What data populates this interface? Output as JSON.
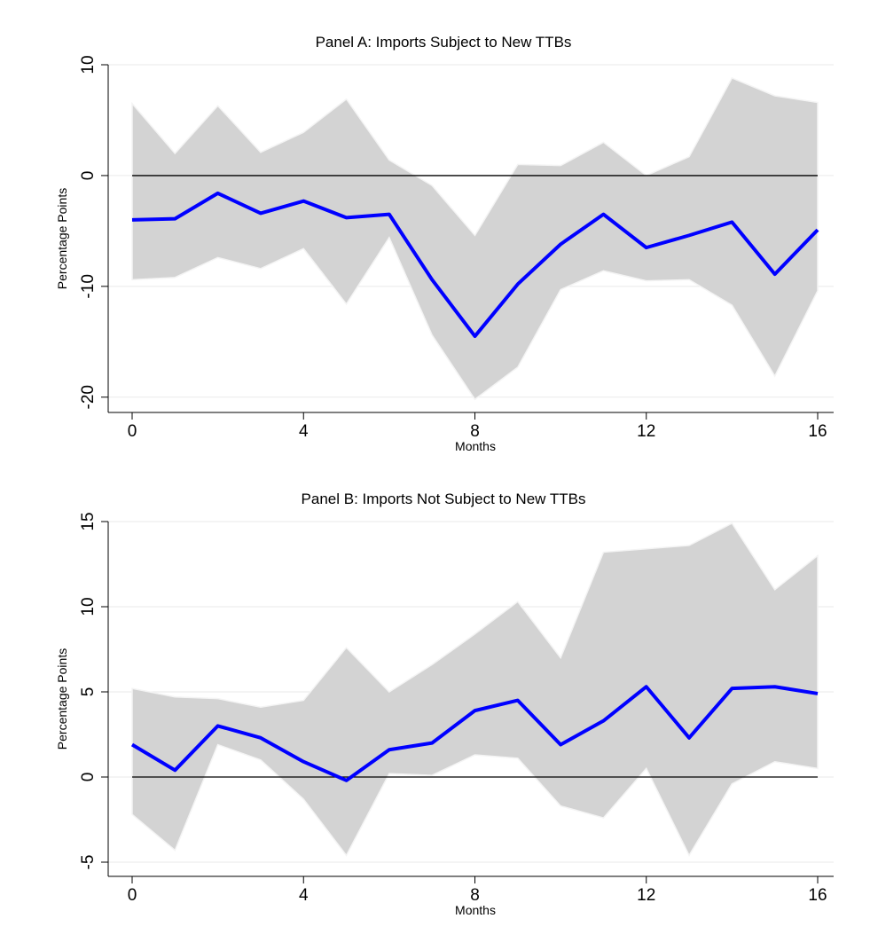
{
  "chart_data": [
    {
      "type": "line",
      "title": "Panel A: Imports Subject to New TTBs",
      "xlabel": "Months",
      "ylabel": "Percentage Points",
      "x": [
        0,
        1,
        2,
        3,
        4,
        5,
        6,
        7,
        8,
        9,
        10,
        11,
        12,
        13,
        14,
        15,
        16
      ],
      "values": [
        -4.0,
        -3.9,
        -1.6,
        -3.4,
        -2.3,
        -3.8,
        -3.5,
        -9.4,
        -14.5,
        -9.8,
        -6.2,
        -3.5,
        -6.5,
        -5.4,
        -4.2,
        -8.9,
        -4.9
      ],
      "color": "#0000ff",
      "band": {
        "upper": [
          6.5,
          2.0,
          6.3,
          2.1,
          3.9,
          6.9,
          1.4,
          -0.9,
          -5.4,
          1.0,
          0.9,
          3.0,
          0,
          1.7,
          8.8,
          7.2,
          6.6
        ],
        "lower": [
          -9.4,
          -9.2,
          -7.4,
          -8.4,
          -6.6,
          -11.6,
          -5.6,
          -14.4,
          -20.2,
          -17.3,
          -10.3,
          -8.6,
          -9.5,
          -9.4,
          -11.7,
          -18.1,
          -10.4
        ],
        "color": "#d3d3d3"
      },
      "reference_line": 0,
      "xlim": [
        0,
        16
      ],
      "xticks": [
        0,
        4,
        8,
        12,
        16
      ],
      "ylim": [
        -20.5,
        10
      ],
      "yticks": [
        -20,
        -10,
        0,
        10
      ],
      "grid": true
    },
    {
      "type": "line",
      "title": "Panel B: Imports Not Subject to New TTBs",
      "xlabel": "Months",
      "ylabel": "Percentage Points",
      "x": [
        0,
        1,
        2,
        3,
        4,
        5,
        6,
        7,
        8,
        9,
        10,
        11,
        12,
        13,
        14,
        15,
        16
      ],
      "values": [
        1.9,
        0.4,
        3.0,
        2.3,
        0.9,
        -0.2,
        1.6,
        2.0,
        3.9,
        4.5,
        1.9,
        3.3,
        5.3,
        2.3,
        5.2,
        5.3,
        4.9
      ],
      "color": "#0000ff",
      "band": {
        "upper": [
          5.2,
          4.7,
          4.6,
          4.1,
          4.5,
          7.6,
          5.0,
          6.6,
          8.4,
          10.3,
          7.0,
          13.2,
          13.4,
          13.6,
          14.9,
          11.0,
          13.0
        ],
        "lower": [
          -2.2,
          -4.3,
          1.9,
          1.0,
          -1.3,
          -4.6,
          0.2,
          0.1,
          1.3,
          1.1,
          -1.7,
          -2.4,
          0.5,
          -4.6,
          -0.4,
          0.9,
          0.5
        ],
        "color": "#d3d3d3"
      },
      "reference_line": 0,
      "xlim": [
        0,
        16
      ],
      "xticks": [
        0,
        4,
        8,
        12,
        16
      ],
      "ylim": [
        -5,
        15
      ],
      "yticks": [
        -5,
        0,
        5,
        10,
        15
      ],
      "grid": true
    }
  ]
}
